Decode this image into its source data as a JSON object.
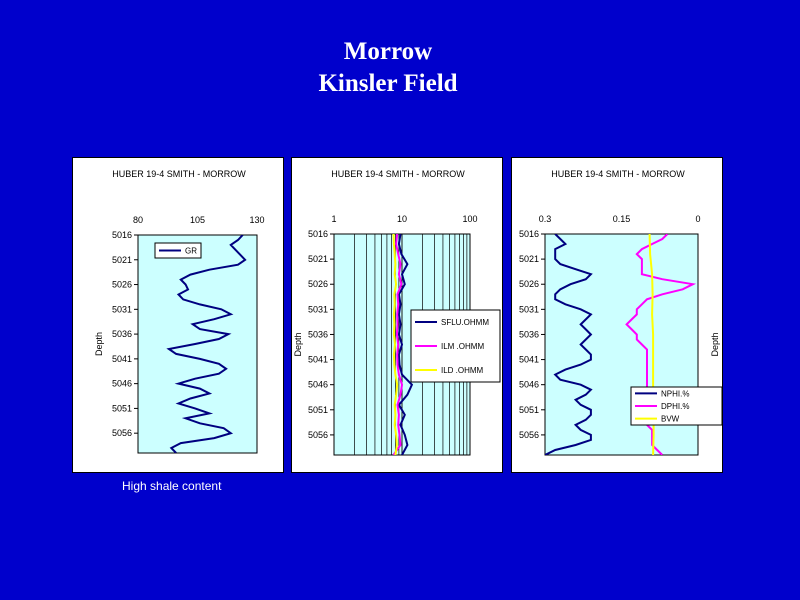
{
  "slide": {
    "title_line1": "Morrow",
    "title_line2": "Kinsler Field",
    "caption": "High shale content"
  },
  "colors": {
    "background": "#0000cc",
    "plot_fill": "#ccffff",
    "gr": "#000080",
    "sflu": "#000080",
    "ilm": "#ff00ff",
    "ild": "#ffff00",
    "nphi": "#000080",
    "dphi": "#ff00ff",
    "bvw": "#ffff00"
  },
  "chart_data": [
    {
      "type": "line",
      "title": "HUBER  19-4  SMITH - MORROW",
      "ylabel": "Depth",
      "xscale": "linear",
      "xlim": [
        80,
        130
      ],
      "xticks": [
        "80",
        "105",
        "130"
      ],
      "ylim": [
        5016,
        5060
      ],
      "yticks": [
        5016,
        5021,
        5026,
        5031,
        5036,
        5041,
        5046,
        5051,
        5056
      ],
      "grid": false,
      "legend_position": "top-left",
      "series": [
        {
          "name": "GR",
          "color": "#000080",
          "depth": [
            5016,
            5017,
            5018,
            5019,
            5020,
            5021,
            5022,
            5023,
            5024,
            5025,
            5026,
            5027,
            5028,
            5029,
            5030,
            5031,
            5032,
            5033,
            5034,
            5035,
            5036,
            5037,
            5038,
            5039,
            5040,
            5041,
            5042,
            5043,
            5044,
            5045,
            5046,
            5047,
            5048,
            5049,
            5050,
            5051,
            5052,
            5053,
            5054,
            5055,
            5056,
            5057,
            5058,
            5059,
            5060
          ],
          "values": [
            124,
            122,
            119,
            121,
            123,
            125,
            122,
            110,
            102,
            98,
            100,
            101,
            97,
            99,
            106,
            115,
            119,
            112,
            103,
            106,
            118,
            114,
            104,
            93,
            96,
            106,
            114,
            117,
            114,
            104,
            97,
            106,
            110,
            102,
            97,
            104,
            110,
            100,
            106,
            116,
            119,
            112,
            98,
            94,
            96
          ]
        }
      ]
    },
    {
      "type": "line",
      "title": "HUBER  19-4  SMITH - MORROW",
      "ylabel": "Depth",
      "xscale": "log",
      "xlim": [
        1,
        100
      ],
      "xticks": [
        "1",
        "10",
        "100"
      ],
      "ylim": [
        5016,
        5060
      ],
      "yticks": [
        5016,
        5021,
        5026,
        5031,
        5036,
        5041,
        5046,
        5051,
        5056
      ],
      "grid": true,
      "legend_position": "right",
      "series": [
        {
          "name": "SFLU.OHMM",
          "color": "#000080",
          "depth": [
            5016,
            5018,
            5020,
            5022,
            5024,
            5026,
            5028,
            5030,
            5032,
            5034,
            5036,
            5038,
            5040,
            5042,
            5044,
            5046,
            5048,
            5050,
            5052,
            5054,
            5056,
            5058,
            5060
          ],
          "values": [
            9.5,
            9.0,
            9.8,
            12,
            10,
            11,
            9.0,
            9.5,
            9.0,
            9.5,
            9.0,
            10,
            9.0,
            9.2,
            10,
            14,
            12,
            9.0,
            11,
            9.5,
            11,
            12,
            10
          ]
        },
        {
          "name": "ILM .OHMM",
          "color": "#ff00ff",
          "depth": [
            5016,
            5018,
            5020,
            5022,
            5024,
            5026,
            5028,
            5030,
            5032,
            5034,
            5036,
            5038,
            5040,
            5042,
            5044,
            5046,
            5048,
            5050,
            5052,
            5054,
            5056,
            5058,
            5060
          ],
          "values": [
            8.5,
            8.2,
            8.8,
            9.5,
            9.0,
            9.8,
            8.6,
            8.8,
            8.5,
            8.6,
            8.4,
            8.8,
            8.5,
            8.6,
            9.0,
            10,
            9.5,
            8.6,
            9.0,
            8.8,
            9.2,
            9.5,
            7.5
          ]
        },
        {
          "name": "ILD .OHMM",
          "color": "#ffff00",
          "depth": [
            5016,
            5018,
            5020,
            5022,
            5024,
            5026,
            5028,
            5030,
            5032,
            5034,
            5036,
            5038,
            5040,
            5042,
            5044,
            5046,
            5048,
            5050,
            5052,
            5054,
            5056,
            5058,
            5060
          ],
          "values": [
            7.5,
            7.6,
            7.8,
            8.0,
            7.8,
            8.2,
            7.7,
            7.8,
            7.6,
            7.7,
            7.6,
            7.9,
            7.6,
            7.7,
            8.0,
            8.5,
            8.2,
            7.8,
            8.0,
            7.8,
            8.2,
            8.4,
            8.0
          ]
        }
      ]
    },
    {
      "type": "line",
      "title": "HUBER  19-4  SMITH - MORROW",
      "ylabel": "Depth",
      "xscale": "linear",
      "xlim": [
        0.3,
        0
      ],
      "xticks": [
        "0.3",
        "0.15",
        "0"
      ],
      "ylim": [
        5016,
        5060
      ],
      "yticks": [
        5016,
        5021,
        5026,
        5031,
        5036,
        5041,
        5046,
        5051,
        5056
      ],
      "grid": false,
      "legend_position": "bottom-right",
      "series": [
        {
          "name": "NPHI.%",
          "color": "#000080",
          "depth": [
            5016,
            5017,
            5018,
            5019,
            5020,
            5021,
            5022,
            5023,
            5024,
            5025,
            5026,
            5027,
            5028,
            5029,
            5030,
            5031,
            5032,
            5033,
            5034,
            5035,
            5036,
            5037,
            5038,
            5039,
            5040,
            5041,
            5042,
            5043,
            5044,
            5045,
            5046,
            5047,
            5048,
            5049,
            5050,
            5051,
            5052,
            5053,
            5054,
            5055,
            5056,
            5057,
            5058,
            5059,
            5060
          ],
          "values": [
            0.28,
            0.27,
            0.26,
            0.28,
            0.28,
            0.28,
            0.27,
            0.24,
            0.21,
            0.22,
            0.25,
            0.27,
            0.28,
            0.28,
            0.26,
            0.23,
            0.21,
            0.22,
            0.23,
            0.22,
            0.21,
            0.22,
            0.23,
            0.22,
            0.21,
            0.21,
            0.23,
            0.26,
            0.28,
            0.27,
            0.23,
            0.21,
            0.22,
            0.24,
            0.23,
            0.21,
            0.21,
            0.22,
            0.24,
            0.23,
            0.21,
            0.21,
            0.24,
            0.28,
            0.3
          ]
        },
        {
          "name": "DPHI.%",
          "color": "#ff00ff",
          "depth": [
            5016,
            5017,
            5018,
            5019,
            5020,
            5021,
            5022,
            5023,
            5024,
            5025,
            5026,
            5027,
            5028,
            5029,
            5030,
            5031,
            5032,
            5033,
            5034,
            5035,
            5036,
            5037,
            5038,
            5039,
            5040,
            5041,
            5042,
            5043,
            5044,
            5045,
            5046,
            5047,
            5048,
            5049,
            5050,
            5051,
            5052,
            5053,
            5054,
            5055,
            5056,
            5057,
            5058,
            5059,
            5060
          ],
          "values": [
            0.06,
            0.07,
            0.09,
            0.11,
            0.12,
            0.11,
            0.11,
            0.11,
            0.11,
            0.07,
            0.01,
            0.03,
            0.07,
            0.1,
            0.11,
            0.12,
            0.12,
            0.13,
            0.14,
            0.13,
            0.12,
            0.12,
            0.11,
            0.1,
            0.1,
            0.1,
            0.1,
            0.1,
            0.1,
            0.1,
            0.1,
            0.1,
            0.09,
            0.09,
            0.09,
            0.09,
            0.09,
            0.1,
            0.1,
            0.09,
            0.09,
            0.09,
            0.09,
            0.08,
            0.07
          ]
        },
        {
          "name": "BVW",
          "color": "#ffff00",
          "depth": [
            5016,
            5020,
            5024,
            5028,
            5032,
            5036,
            5040,
            5044,
            5048,
            5052,
            5056,
            5060
          ],
          "values": [
            0.095,
            0.094,
            0.09,
            0.089,
            0.09,
            0.088,
            0.088,
            0.088,
            0.088,
            0.087,
            0.087,
            0.088
          ]
        }
      ]
    }
  ]
}
